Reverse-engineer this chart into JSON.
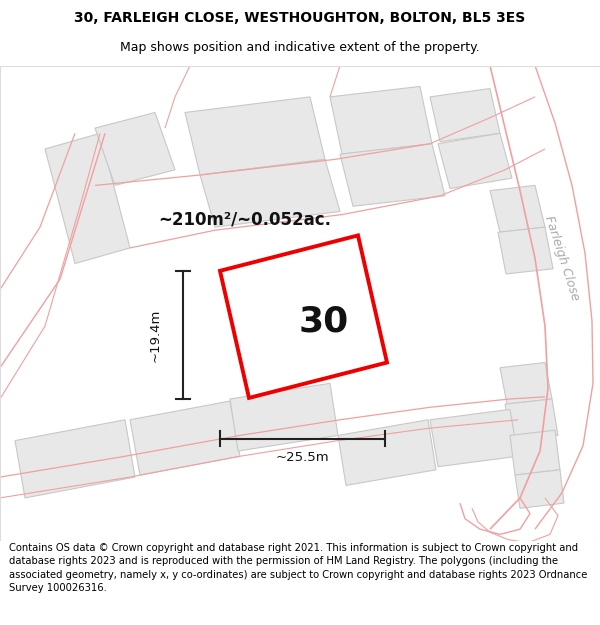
{
  "title_line1": "30, FARLEIGH CLOSE, WESTHOUGHTON, BOLTON, BL5 3ES",
  "title_line2": "Map shows position and indicative extent of the property.",
  "footer_text": "Contains OS data © Crown copyright and database right 2021. This information is subject to Crown copyright and database rights 2023 and is reproduced with the permission of HM Land Registry. The polygons (including the associated geometry, namely x, y co-ordinates) are subject to Crown copyright and database rights 2023 Ordnance Survey 100026316.",
  "area_text": "~210m²/~0.052ac.",
  "property_number": "30",
  "dim_width": "~25.5m",
  "dim_height": "~19.4m",
  "street_label": "Farleigh Close",
  "map_bg": "#ffffff",
  "building_fill": "#e8e8e8",
  "building_edge": "#c8c8c8",
  "road_line_color": "#f0a0a0",
  "property_outline_color": "#ee0000",
  "property_fill": "#ffffff",
  "dim_color": "#222222",
  "text_color": "#111111",
  "street_color": "#aaaaaa"
}
